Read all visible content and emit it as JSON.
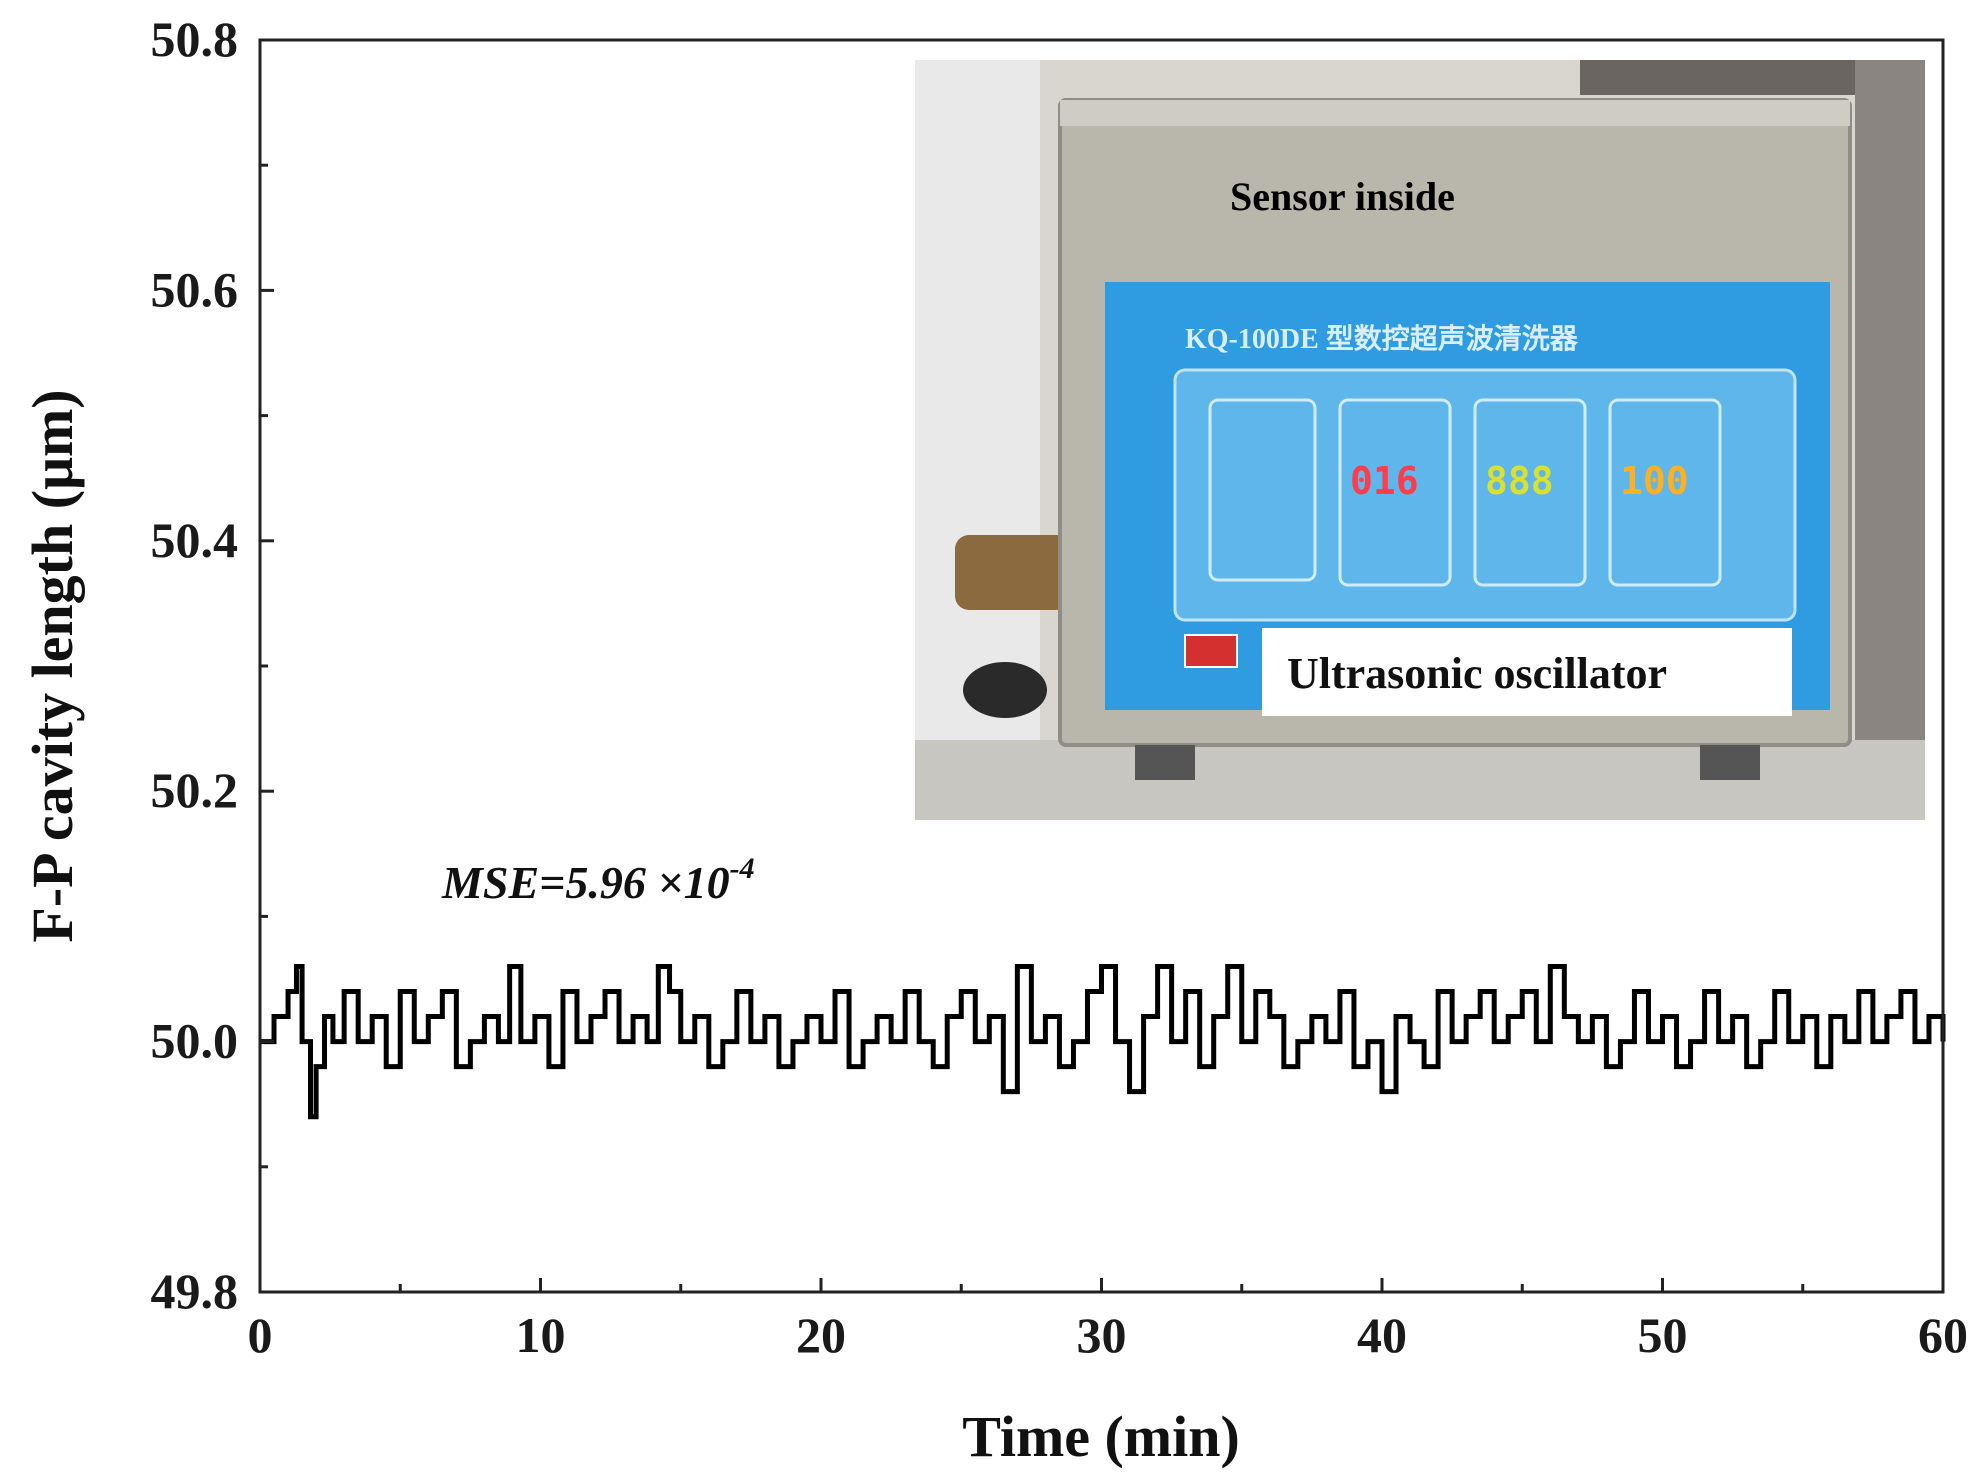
{
  "chart_data": {
    "type": "line",
    "title": "",
    "xlabel": "Time (min)",
    "ylabel": "F-P cavity length (μm)",
    "xlim": [
      0,
      60
    ],
    "ylim": [
      49.8,
      50.8
    ],
    "x_ticks": [
      "0",
      "10",
      "20",
      "30",
      "40",
      "50",
      "60"
    ],
    "y_ticks": [
      "49.8",
      "50.0",
      "50.2",
      "50.4",
      "50.6",
      "50.8"
    ],
    "grid": false,
    "legend": "none",
    "series": [
      {
        "color": "#000000",
        "x": [
          0,
          0.5,
          1.0,
          1.3,
          1.5,
          1.8,
          2.0,
          2.3,
          2.6,
          3.0,
          3.5,
          4.0,
          4.5,
          5.0,
          5.5,
          6.0,
          6.5,
          7.0,
          7.5,
          8.0,
          8.5,
          8.9,
          9.3,
          9.8,
          10.3,
          10.8,
          11.3,
          11.8,
          12.3,
          12.8,
          13.3,
          13.8,
          14.2,
          14.6,
          15.0,
          15.5,
          16.0,
          16.5,
          17.0,
          17.5,
          18.0,
          18.5,
          19.0,
          19.5,
          20.0,
          20.5,
          21.0,
          21.5,
          22.0,
          22.5,
          23.0,
          23.5,
          24.0,
          24.5,
          25.0,
          25.5,
          26.0,
          26.5,
          27.0,
          27.5,
          28.0,
          28.5,
          29.0,
          29.5,
          30.0,
          30.5,
          31.0,
          31.5,
          32.0,
          32.5,
          33.0,
          33.5,
          34.0,
          34.5,
          35.0,
          35.5,
          36.0,
          36.5,
          37.0,
          37.5,
          38.0,
          38.5,
          39.0,
          39.5,
          40.0,
          40.5,
          41.0,
          41.5,
          42.0,
          42.5,
          43.0,
          43.5,
          44.0,
          44.5,
          45.0,
          45.5,
          46.0,
          46.5,
          47.0,
          47.5,
          48.0,
          48.5,
          49.0,
          49.5,
          50.0,
          50.5,
          51.0,
          51.5,
          52.0,
          52.5,
          53.0,
          53.5,
          54.0,
          54.5,
          55.0,
          55.5,
          56.0,
          56.5,
          57.0,
          57.5,
          58.0,
          58.5,
          59.0,
          59.5,
          60.0
        ],
        "values": [
          50.0,
          50.02,
          50.04,
          50.06,
          50.0,
          49.94,
          49.98,
          50.02,
          50.0,
          50.04,
          50.0,
          50.02,
          49.98,
          50.04,
          50.0,
          50.02,
          50.04,
          49.98,
          50.0,
          50.02,
          50.0,
          50.06,
          50.0,
          50.02,
          49.98,
          50.04,
          50.0,
          50.02,
          50.04,
          50.0,
          50.02,
          50.0,
          50.06,
          50.04,
          50.0,
          50.02,
          49.98,
          50.0,
          50.04,
          50.0,
          50.02,
          49.98,
          50.0,
          50.02,
          50.0,
          50.04,
          49.98,
          50.0,
          50.02,
          50.0,
          50.04,
          50.0,
          49.98,
          50.02,
          50.04,
          50.0,
          50.02,
          49.96,
          50.06,
          50.0,
          50.02,
          49.98,
          50.0,
          50.04,
          50.06,
          50.0,
          49.96,
          50.02,
          50.06,
          50.0,
          50.04,
          49.98,
          50.02,
          50.06,
          50.0,
          50.04,
          50.02,
          49.98,
          50.0,
          50.02,
          50.0,
          50.04,
          49.98,
          50.0,
          49.96,
          50.02,
          50.0,
          49.98,
          50.04,
          50.0,
          50.02,
          50.04,
          50.0,
          50.02,
          50.04,
          50.0,
          50.06,
          50.02,
          50.0,
          50.02,
          49.98,
          50.0,
          50.04,
          50.0,
          50.02,
          49.98,
          50.0,
          50.04,
          50.0,
          50.02,
          49.98,
          50.0,
          50.04,
          50.0,
          50.02,
          49.98,
          50.02,
          50.0,
          50.04,
          50.0,
          50.02,
          50.04,
          50.0,
          50.02,
          50.0
        ]
      }
    ],
    "annotations": {
      "mse_text": "MSE=5.96 ×10",
      "mse_exp": "-4"
    }
  },
  "inset": {
    "sensor_label": "Sensor inside",
    "panel_title": "KQ-100DE 型数控超声波清洗器",
    "display_1": "016",
    "display_2": "888",
    "display_3": "100",
    "callout": "Ultrasonic oscillator",
    "colors": {
      "sensor_label": "#c0141c",
      "panel_blue": "#2f9be0",
      "panel_inner": "#5fb6ea",
      "tank_metal": "#b9b6ac",
      "display_1": "#ff3c4a",
      "display_2": "#d8e030",
      "display_3": "#ffb020"
    }
  }
}
